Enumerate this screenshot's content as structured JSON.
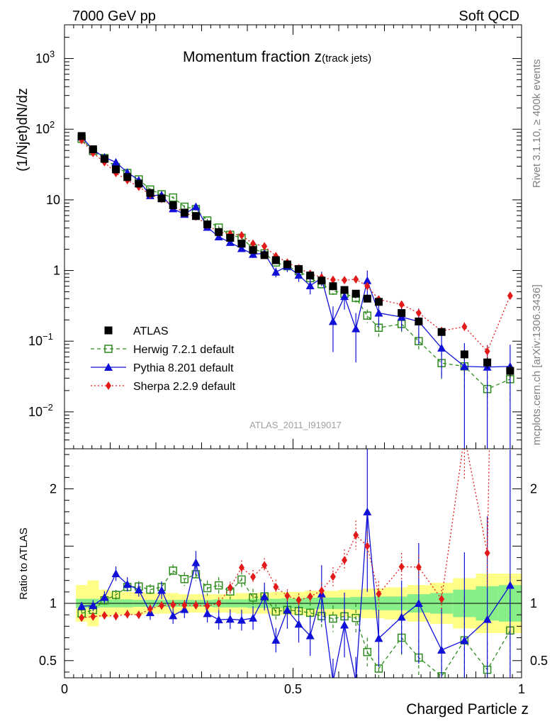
{
  "header": {
    "left": "7000 GeV pp",
    "right": "Soft QCD"
  },
  "side_text": {
    "top": "Rivet 3.1.10, ≥ 400k events",
    "bottom": "mcplots.cern.ch [arXiv:1306.3436]"
  },
  "watermark": "ATLAS_2011_I919017",
  "chart_data": {
    "type": "scatter",
    "title": "Momentum fraction z",
    "title_sub": "(track jets)",
    "ylabel": "(1/Njet)dN/dz",
    "ratio_ylabel": "Ratio to ATLAS",
    "xlabel": "Charged Particle z",
    "xlim": [
      0,
      1
    ],
    "ylim": [
      0.003,
      3000
    ],
    "ratio_ylim": [
      0.35,
      2.35
    ],
    "y_scale": "log",
    "x_ticks": [
      {
        "v": 0,
        "label": "0"
      },
      {
        "v": 0.5,
        "label": "0.5"
      },
      {
        "v": 1,
        "label": "1"
      }
    ],
    "y_ticks": [
      {
        "v": 1000,
        "base": "10",
        "exp": "3"
      },
      {
        "v": 100,
        "base": "10",
        "exp": "2"
      },
      {
        "v": 10,
        "base": "10",
        "exp": ""
      },
      {
        "v": 1,
        "base": "1",
        "exp": ""
      },
      {
        "v": 0.1,
        "base": "10",
        "exp": "−1"
      },
      {
        "v": 0.01,
        "base": "10",
        "exp": "−2"
      }
    ],
    "ratio_ticks": [
      {
        "v": 2,
        "label": "2"
      },
      {
        "v": 1,
        "label": "1"
      },
      {
        "v": 0.5,
        "label": "0.5"
      }
    ],
    "legend_position": "bottom-left",
    "x": [
      0.0375,
      0.0625,
      0.0875,
      0.1125,
      0.1375,
      0.1625,
      0.1875,
      0.2125,
      0.2375,
      0.2625,
      0.2875,
      0.3125,
      0.3375,
      0.3625,
      0.3875,
      0.4125,
      0.4375,
      0.4625,
      0.4875,
      0.5125,
      0.5375,
      0.5625,
      0.5875,
      0.6125,
      0.6375,
      0.6625,
      0.6875,
      0.7375,
      0.775,
      0.825,
      0.875,
      0.925,
      0.975
    ],
    "series": [
      {
        "name": "ATLAS",
        "color": "#000000",
        "marker": "square-filled",
        "values": [
          80,
          52,
          38,
          27,
          21,
          17,
          12.5,
          10.5,
          8.4,
          6.6,
          5.9,
          4.5,
          3.5,
          2.9,
          2.4,
          1.95,
          1.65,
          1.4,
          1.22,
          1.05,
          0.85,
          0.72,
          0.6,
          0.53,
          0.47,
          0.4,
          0.36,
          0.25,
          0.19,
          0.135,
          0.065,
          0.05,
          0.038
        ],
        "errors": [
          2,
          1.5,
          1.2,
          1,
          0.8,
          0.6,
          0.5,
          0.4,
          0.35,
          0.3,
          0.25,
          0.2,
          0.18,
          0.15,
          0.12,
          0.1,
          0.09,
          0.08,
          0.07,
          0.06,
          0.05,
          0.045,
          0.04,
          0.035,
          0.03,
          0.03,
          0.03,
          0.02,
          0.018,
          0.015,
          0.01,
          0.009,
          0.008
        ]
      },
      {
        "name": "Herwig 7.2.1 default",
        "color": "#2e8b1e",
        "marker": "square-open",
        "dash": "5,4",
        "values": [
          73,
          49,
          39,
          29,
          24,
          19.5,
          14,
          12,
          10.8,
          8,
          7.4,
          5.1,
          4.05,
          3.2,
          2.9,
          2.05,
          1.75,
          1.3,
          1.15,
          0.98,
          0.78,
          0.64,
          0.52,
          0.47,
          0.41,
          0.23,
          0.155,
          0.175,
          0.1,
          0.049,
          0.044,
          0.021,
          0.029
        ],
        "errors": [
          3,
          2,
          1.5,
          1.2,
          1,
          0.8,
          0.6,
          0.5,
          0.45,
          0.4,
          0.35,
          0.3,
          0.25,
          0.2,
          0.18,
          0.15,
          0.13,
          0.1,
          0.1,
          0.09,
          0.08,
          0.07,
          0.07,
          0.06,
          0.06,
          0.05,
          0.04,
          0.04,
          0.03,
          0.02,
          0.025,
          0.012,
          0.015
        ]
      },
      {
        "name": "Pythia 8.201 default",
        "color": "#1010d8",
        "marker": "triangle",
        "dash": "",
        "values": [
          78,
          51,
          40,
          34,
          24.5,
          19,
          11.5,
          11.7,
          7.5,
          6.25,
          8,
          4.1,
          3,
          2.5,
          2.05,
          1.7,
          1.75,
          0.95,
          1.15,
          0.86,
          0.61,
          0.78,
          0.19,
          0.43,
          0.15,
          0.72,
          0.25,
          0.22,
          0.19,
          0.08,
          0.044,
          0.043,
          0.044
        ],
        "errors": [
          3,
          2.5,
          2,
          1.7,
          1.3,
          1,
          0.8,
          0.8,
          0.6,
          0.5,
          0.6,
          0.35,
          0.3,
          0.25,
          0.22,
          0.2,
          0.2,
          0.15,
          0.2,
          0.17,
          0.15,
          0.18,
          0.12,
          0.15,
          0.1,
          0.28,
          0.09,
          0.08,
          0.1,
          0.05,
          0.05,
          0.045,
          0.045
        ]
      },
      {
        "name": "Sherpa 2.2.9 default",
        "color": "#e31a1a",
        "marker": "diamond",
        "dash": "2,3",
        "values": [
          70,
          46,
          34,
          24,
          19,
          15.3,
          11.9,
          10.3,
          8.3,
          6.5,
          5.8,
          4.4,
          3.5,
          3.3,
          3.15,
          2.4,
          2.2,
          1.6,
          1.3,
          1.08,
          0.9,
          0.8,
          0.74,
          0.73,
          0.75,
          0.6,
          0.39,
          0.33,
          0.25,
          0.14,
          0.16,
          0.072,
          0.44
        ],
        "errors": [
          2,
          1.5,
          1.2,
          1,
          0.8,
          0.6,
          0.5,
          0.4,
          0.35,
          0.3,
          0.25,
          0.2,
          0.18,
          0.15,
          0.15,
          0.12,
          0.1,
          0.09,
          0.07,
          0.06,
          0.05,
          0.05,
          0.05,
          0.05,
          0.06,
          0.05,
          0.04,
          0.03,
          0.02,
          0.015,
          0.025,
          0.015,
          0.05
        ]
      }
    ],
    "ratio_band": {
      "x": [
        0.025,
        0.05,
        0.075,
        0.1,
        0.125,
        0.15,
        0.175,
        0.2,
        0.225,
        0.25,
        0.275,
        0.3,
        0.325,
        0.35,
        0.375,
        0.4,
        0.425,
        0.45,
        0.475,
        0.5,
        0.525,
        0.55,
        0.575,
        0.6,
        0.625,
        0.65,
        0.675,
        0.7,
        0.75,
        0.8,
        0.85,
        0.9,
        0.95,
        1.0
      ],
      "stat": [
        0.04,
        0.04,
        0.035,
        0.035,
        0.035,
        0.03,
        0.03,
        0.03,
        0.03,
        0.03,
        0.03,
        0.03,
        0.035,
        0.035,
        0.035,
        0.04,
        0.04,
        0.04,
        0.045,
        0.045,
        0.05,
        0.05,
        0.05,
        0.05,
        0.055,
        0.055,
        0.06,
        0.06,
        0.08,
        0.09,
        0.12,
        0.15,
        0.16
      ],
      "total": [
        0.16,
        0.2,
        0.12,
        0.1,
        0.1,
        0.1,
        0.09,
        0.09,
        0.09,
        0.08,
        0.08,
        0.08,
        0.08,
        0.08,
        0.09,
        0.09,
        0.09,
        0.1,
        0.1,
        0.1,
        0.11,
        0.11,
        0.11,
        0.12,
        0.12,
        0.13,
        0.13,
        0.14,
        0.16,
        0.18,
        0.22,
        0.26,
        0.26
      ]
    }
  }
}
